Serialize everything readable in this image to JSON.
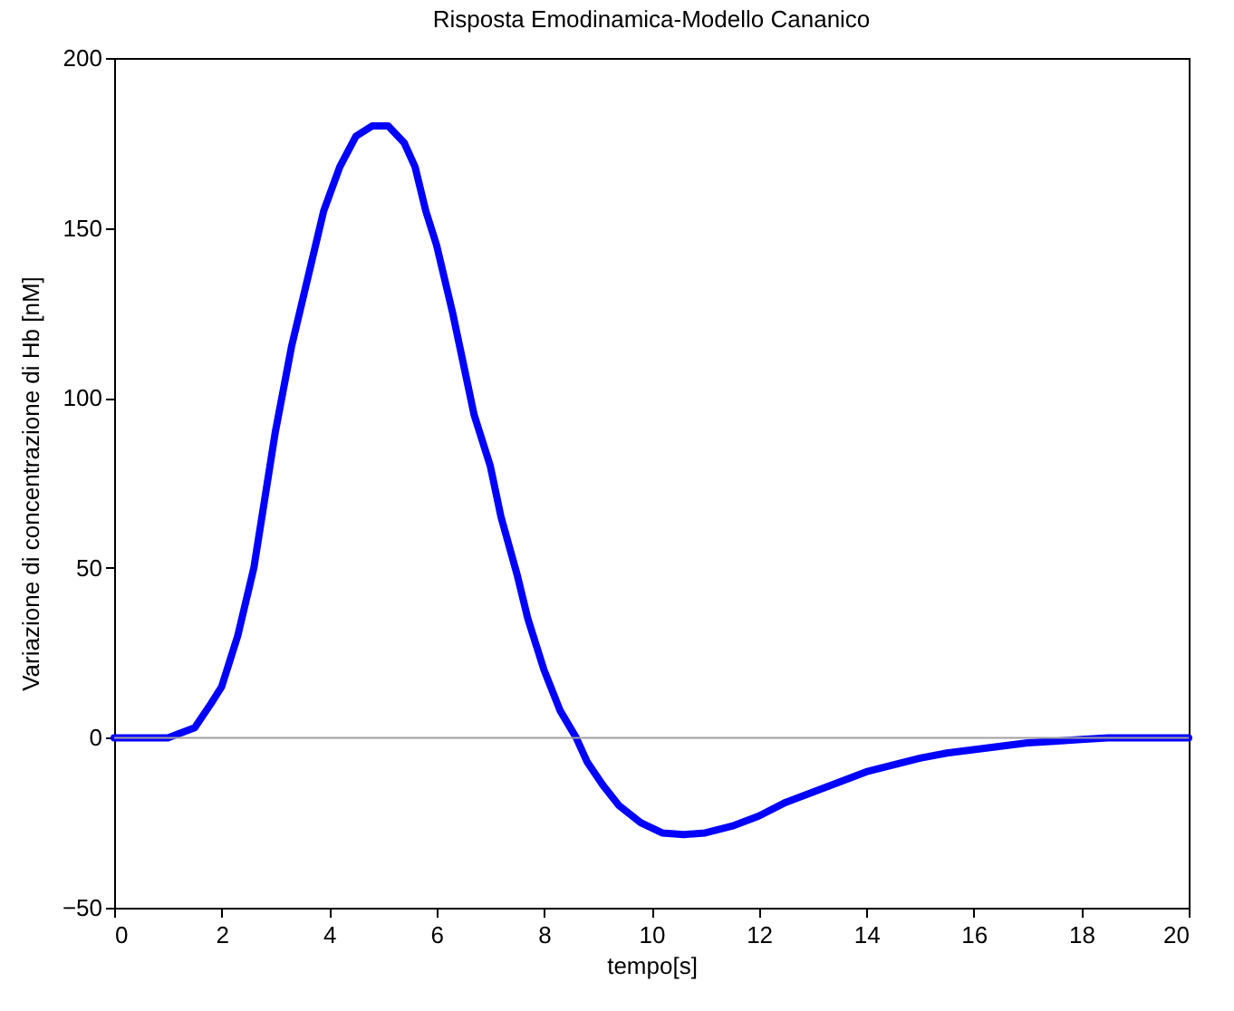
{
  "chart_data": {
    "type": "line",
    "title": "Risposta Emodinamica-Modello Cananico",
    "xlabel": "tempo[s]",
    "ylabel": "Variazione di concentrazione di Hb [nM]",
    "x": [
      0,
      1,
      1.5,
      1.8,
      2,
      2.3,
      2.6,
      2.8,
      3,
      3.3,
      3.6,
      3.9,
      4.2,
      4.5,
      4.8,
      5.1,
      5.4,
      5.6,
      5.8,
      6,
      6.3,
      6.5,
      6.7,
      7,
      7.2,
      7.5,
      7.7,
      8,
      8.3,
      8.6,
      8.8,
      9.1,
      9.4,
      9.8,
      10.2,
      10.6,
      11,
      11.5,
      12,
      12.5,
      13,
      13.5,
      14,
      14.5,
      15,
      15.5,
      16,
      16.5,
      17,
      17.5,
      18,
      18.5,
      20
    ],
    "series": [
      {
        "color": "#0000ff",
        "values": [
          0,
          0,
          3,
          10,
          15,
          30,
          50,
          70,
          90,
          115,
          135,
          155,
          168,
          177,
          180,
          180,
          175,
          168,
          155,
          145,
          125,
          110,
          95,
          80,
          65,
          48,
          35,
          20,
          8,
          0,
          -7,
          -14,
          -20,
          -25,
          -28,
          -28.5,
          -28,
          -26,
          -23,
          -19,
          -16,
          -13,
          -10,
          -8,
          -6,
          -4.5,
          -3.5,
          -2.5,
          -1.5,
          -1,
          -0.5,
          0,
          0
        ]
      }
    ],
    "xlim": [
      0,
      20
    ],
    "xticks": [
      0,
      2,
      4,
      6,
      8,
      10,
      12,
      14,
      16,
      18,
      20
    ],
    "ylim": [
      -50,
      200
    ],
    "yticks": [
      -50,
      0,
      50,
      100,
      150,
      200
    ],
    "ref_lines": [
      {
        "axis": "y",
        "value": 0,
        "color": "#a0a0a0"
      }
    ],
    "grid": false,
    "marker": "none",
    "line_style": "solid"
  }
}
